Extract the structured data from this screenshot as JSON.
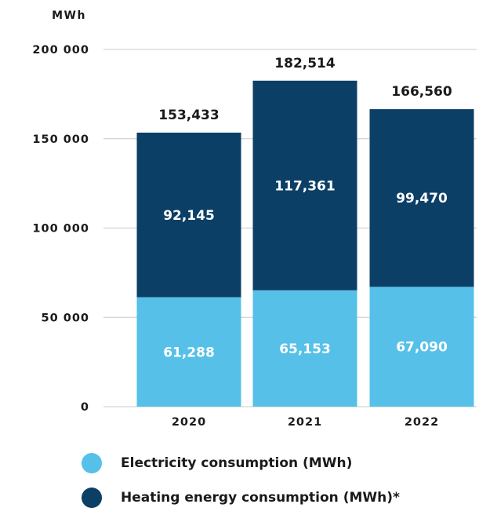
{
  "chart_data": {
    "type": "bar",
    "stacked": true,
    "ylabel": "MWh",
    "ylim": [
      0,
      200000
    ],
    "yticks": [
      {
        "value": 0,
        "label": "0"
      },
      {
        "value": 50000,
        "label": "50 000"
      },
      {
        "value": 100000,
        "label": "100 000"
      },
      {
        "value": 150000,
        "label": "150 000"
      },
      {
        "value": 200000,
        "label": "200 000"
      }
    ],
    "grid": true,
    "categories": [
      "2020",
      "2021",
      "2022"
    ],
    "series": [
      {
        "name": "Electricity consumption (MWh)",
        "color": "#56c0e8",
        "values": [
          61288,
          65153,
          67090
        ],
        "labels": [
          "61,288",
          "65,153",
          "67,090"
        ]
      },
      {
        "name": "Heating energy consumption (MWh)*",
        "color": "#0b3f66",
        "values": [
          92145,
          117361,
          99470
        ],
        "labels": [
          "92,145",
          "117,361",
          "99,470"
        ]
      }
    ],
    "totals": [
      "153,433",
      "182,514",
      "166,560"
    ],
    "legend_position": "bottom"
  }
}
